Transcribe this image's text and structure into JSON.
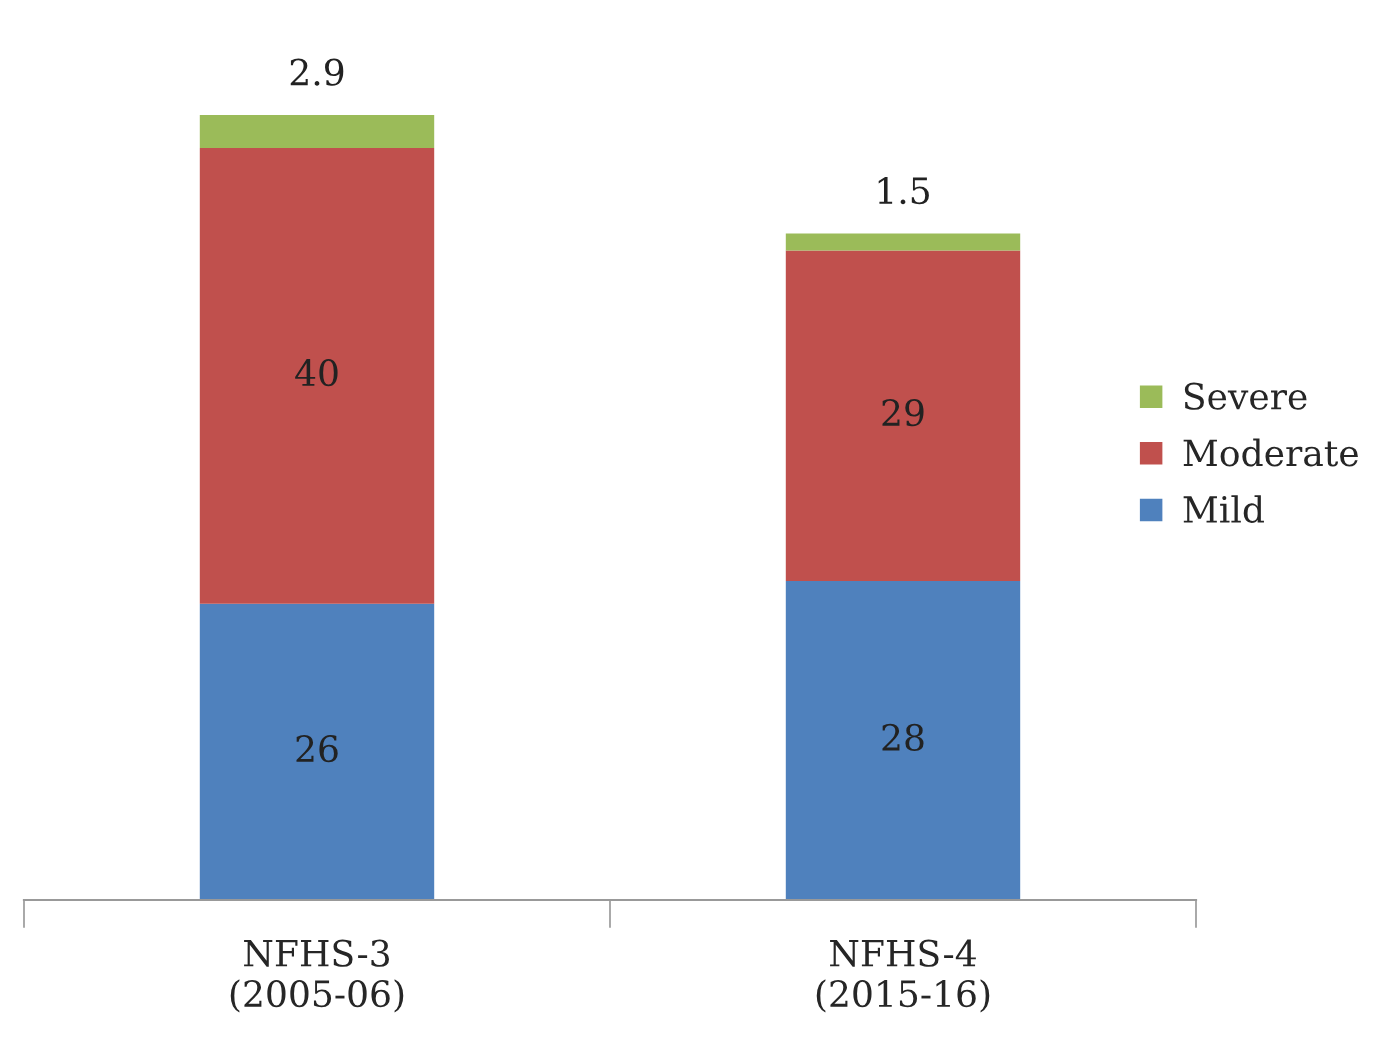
{
  "chart_data": {
    "type": "bar",
    "stacked": true,
    "categories": [
      "NFHS-3\n(2005-06)",
      "NFHS-4\n(2015-16)"
    ],
    "series": [
      {
        "name": "Mild",
        "color": "#4f81bd",
        "values": [
          26,
          28
        ]
      },
      {
        "name": "Moderate",
        "color": "#c0504d",
        "values": [
          40,
          29
        ]
      },
      {
        "name": "Severe",
        "color": "#9bbb59",
        "values": [
          2.9,
          1.5
        ]
      }
    ],
    "data_labels": true,
    "grid": false,
    "legend": "right"
  }
}
